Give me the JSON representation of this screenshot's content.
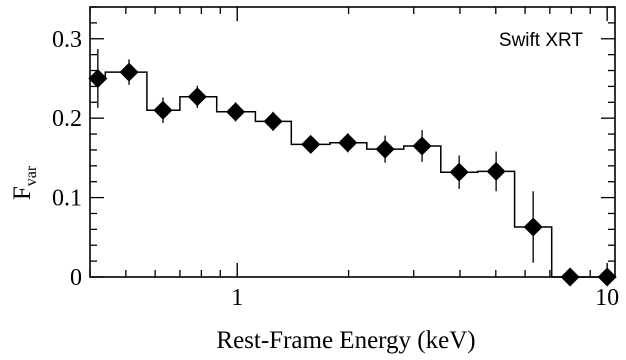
{
  "chart_data": {
    "type": "scatter",
    "title": "",
    "annotation": "Swift XRT",
    "xlabel": "Rest-Frame Energy (keV)",
    "ylabel_main": "F",
    "ylabel_sub": "var",
    "xscale": "log",
    "xlim": [
      0.4,
      10.5
    ],
    "ylim": [
      0,
      0.34
    ],
    "xticks_labeled": [
      {
        "value": 1,
        "label": "1"
      },
      {
        "value": 10,
        "label": "10"
      }
    ],
    "yticks": [
      {
        "value": 0,
        "label": "0"
      },
      {
        "value": 0.1,
        "label": "0.1"
      },
      {
        "value": 0.2,
        "label": "0.2"
      },
      {
        "value": 0.3,
        "label": "0.3"
      }
    ],
    "grid": false,
    "marker": "diamond",
    "color": "#000000",
    "points": [
      {
        "x": 0.42,
        "y": 0.25,
        "err": 0.037,
        "lo": 0.4,
        "hi": 0.44
      },
      {
        "x": 0.51,
        "y": 0.258,
        "err": 0.016,
        "lo": 0.44,
        "hi": 0.57
      },
      {
        "x": 0.63,
        "y": 0.21,
        "err": 0.016,
        "lo": 0.57,
        "hi": 0.7
      },
      {
        "x": 0.78,
        "y": 0.227,
        "err": 0.014,
        "lo": 0.7,
        "hi": 0.88
      },
      {
        "x": 0.99,
        "y": 0.208,
        "err": 0.012,
        "lo": 0.88,
        "hi": 1.12
      },
      {
        "x": 1.25,
        "y": 0.196,
        "err": 0.012,
        "lo": 1.12,
        "hi": 1.4
      },
      {
        "x": 1.58,
        "y": 0.167,
        "err": 0.01,
        "lo": 1.4,
        "hi": 1.78
      },
      {
        "x": 1.99,
        "y": 0.169,
        "err": 0.012,
        "lo": 1.78,
        "hi": 2.24
      },
      {
        "x": 2.51,
        "y": 0.161,
        "err": 0.017,
        "lo": 2.24,
        "hi": 2.82
      },
      {
        "x": 3.16,
        "y": 0.165,
        "err": 0.02,
        "lo": 2.82,
        "hi": 3.55
      },
      {
        "x": 3.98,
        "y": 0.132,
        "err": 0.021,
        "lo": 3.55,
        "hi": 4.47
      },
      {
        "x": 5.01,
        "y": 0.133,
        "err": 0.025,
        "lo": 4.47,
        "hi": 5.62
      },
      {
        "x": 6.31,
        "y": 0.063,
        "err": 0.045,
        "lo": 5.62,
        "hi": 7.08
      },
      {
        "x": 7.94,
        "y": 0.0,
        "err": 0.0,
        "lo": 7.08,
        "hi": 8.91
      },
      {
        "x": 10.0,
        "y": 0.0,
        "err": 0.0,
        "lo": 8.91,
        "hi": 10.5
      }
    ]
  }
}
